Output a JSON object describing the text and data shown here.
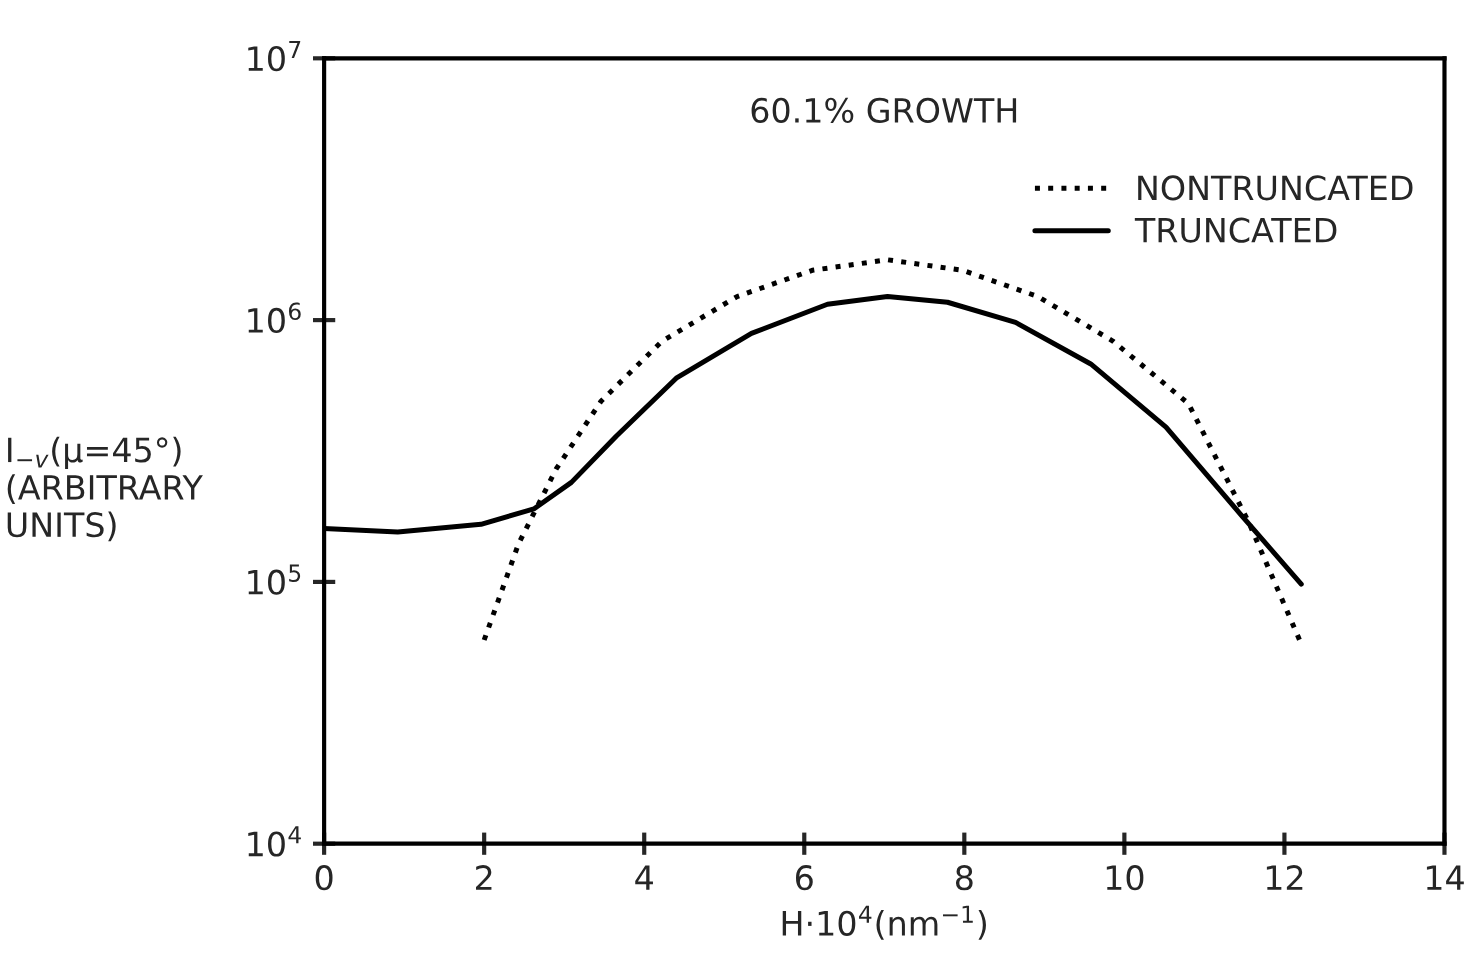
{
  "chart_data": {
    "type": "line",
    "xlabel": "H·10$^{4}$(nm$^{−1}$)",
    "ylabel": "I$_{−v}$(μ=45°)\n(ARBITRARY\nUNITS)",
    "annotations": [
      "60.1% GROWTH"
    ],
    "log": "y",
    "xlim": [
      0,
      14
    ],
    "xticks": [
      0,
      2,
      4,
      6,
      8,
      10,
      12,
      14
    ],
    "ylim": [
      10000,
      10000000
    ],
    "yticks": [
      {
        "value": 10000,
        "label": "10$^{4}$"
      },
      {
        "value": 100000,
        "label": "10$^{5}$"
      },
      {
        "value": 1000000,
        "label": "10$^{6}$"
      },
      {
        "value": 10000000,
        "label": "10$^{7}$"
      }
    ],
    "grid": false,
    "legend": "top right",
    "marker": "none",
    "series": [
      {
        "name": "NONTRUNCATED",
        "color": "#000000",
        "line_style": "dotted",
        "x": [
          2.0,
          2.43,
          2.9,
          3.46,
          4.22,
          5.16,
          6.1,
          7.04,
          7.98,
          8.92,
          9.86,
          10.8,
          11.55,
          12.21
        ],
        "values": [
          60000,
          140000,
          270000,
          490000,
          830000,
          1230000,
          1550000,
          1700000,
          1550000,
          1230000,
          830000,
          480000,
          170000,
          58000
        ]
      },
      {
        "name": "TRUNCATED",
        "color": "#000000",
        "line_style": "solid",
        "x": [
          0,
          0.92,
          1.96,
          2.62,
          3.09,
          3.65,
          4.4,
          5.34,
          6.29,
          7.04,
          7.79,
          8.64,
          9.58,
          10.52,
          11.46,
          12.21
        ],
        "values": [
          160000,
          155000,
          166000,
          190000,
          240000,
          360000,
          600000,
          890000,
          1150000,
          1230000,
          1170000,
          980000,
          680000,
          390000,
          180000,
          98000
        ]
      }
    ]
  }
}
